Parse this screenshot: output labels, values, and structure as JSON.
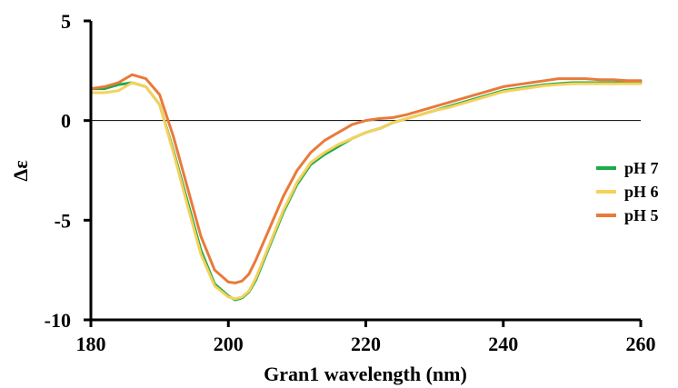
{
  "chart_data": {
    "type": "line",
    "title": "",
    "xlabel": "Gran1 wavelength (nm)",
    "ylabel": "Δε",
    "xlim": [
      180,
      260
    ],
    "ylim": [
      -10,
      5
    ],
    "xticks": [
      180,
      200,
      220,
      240,
      260
    ],
    "yticks": [
      5,
      0,
      -5,
      -10
    ],
    "grid": false,
    "zero_line": true,
    "legend_position": "right",
    "series": [
      {
        "name": "pH 7",
        "color": "#1aab4a",
        "x": [
          180,
          182,
          184,
          186,
          188,
          190,
          192,
          194,
          196,
          198,
          200,
          201,
          202,
          203,
          204,
          206,
          208,
          210,
          212,
          214,
          216,
          218,
          220,
          222,
          224,
          226,
          228,
          230,
          232,
          234,
          236,
          238,
          240,
          242,
          244,
          246,
          248,
          250,
          252,
          254,
          256,
          258,
          260
        ],
        "y": [
          1.6,
          1.6,
          1.8,
          1.9,
          1.7,
          0.8,
          -1.5,
          -4.0,
          -6.5,
          -8.2,
          -8.8,
          -9.0,
          -8.9,
          -8.6,
          -8.0,
          -6.3,
          -4.6,
          -3.2,
          -2.2,
          -1.7,
          -1.3,
          -0.9,
          -0.6,
          -0.4,
          -0.1,
          0.1,
          0.3,
          0.5,
          0.7,
          0.9,
          1.1,
          1.3,
          1.5,
          1.6,
          1.7,
          1.8,
          1.85,
          1.9,
          1.9,
          1.9,
          1.9,
          1.9,
          1.9
        ]
      },
      {
        "name": "pH 6",
        "color": "#f5d15c",
        "x": [
          180,
          182,
          184,
          186,
          188,
          190,
          192,
          194,
          196,
          198,
          200,
          201,
          202,
          203,
          204,
          206,
          208,
          210,
          212,
          214,
          216,
          218,
          220,
          222,
          224,
          226,
          228,
          230,
          232,
          234,
          236,
          238,
          240,
          242,
          244,
          246,
          248,
          250,
          252,
          254,
          256,
          258,
          260
        ],
        "y": [
          1.4,
          1.4,
          1.5,
          1.9,
          1.7,
          0.8,
          -1.6,
          -4.2,
          -6.7,
          -8.3,
          -8.85,
          -8.95,
          -8.85,
          -8.55,
          -7.9,
          -6.2,
          -4.5,
          -3.1,
          -2.1,
          -1.6,
          -1.2,
          -0.9,
          -0.6,
          -0.4,
          -0.1,
          0.1,
          0.3,
          0.5,
          0.65,
          0.85,
          1.05,
          1.25,
          1.45,
          1.55,
          1.65,
          1.75,
          1.8,
          1.85,
          1.85,
          1.85,
          1.85,
          1.85,
          1.85
        ]
      },
      {
        "name": "pH 5",
        "color": "#e97a3b",
        "x": [
          180,
          182,
          184,
          186,
          188,
          190,
          192,
          194,
          196,
          198,
          200,
          201,
          202,
          203,
          204,
          206,
          208,
          210,
          212,
          214,
          216,
          218,
          220,
          222,
          224,
          226,
          228,
          230,
          232,
          234,
          236,
          238,
          240,
          242,
          244,
          246,
          248,
          250,
          252,
          254,
          256,
          258,
          260
        ],
        "y": [
          1.6,
          1.7,
          1.9,
          2.3,
          2.1,
          1.3,
          -0.8,
          -3.3,
          -5.8,
          -7.5,
          -8.1,
          -8.15,
          -8.05,
          -7.7,
          -7.0,
          -5.4,
          -3.8,
          -2.5,
          -1.6,
          -1.0,
          -0.6,
          -0.2,
          0.0,
          0.1,
          0.15,
          0.3,
          0.5,
          0.7,
          0.9,
          1.1,
          1.3,
          1.5,
          1.7,
          1.8,
          1.9,
          2.0,
          2.1,
          2.1,
          2.1,
          2.05,
          2.05,
          2.0,
          2.0
        ]
      }
    ]
  }
}
